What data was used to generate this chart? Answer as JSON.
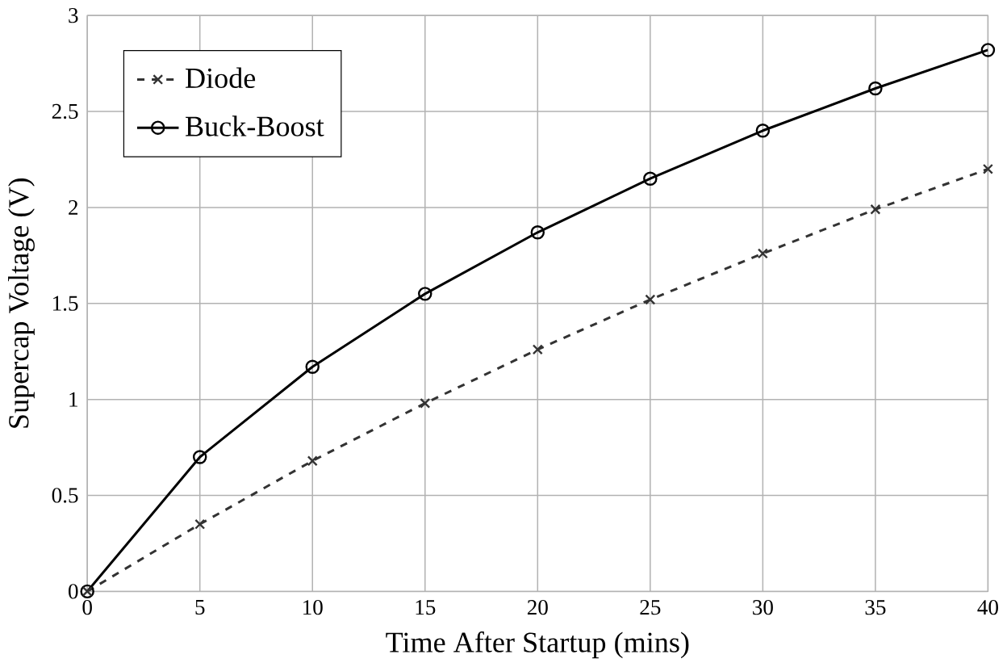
{
  "chart_data": {
    "type": "line",
    "xlabel": "Time After Startup (mins)",
    "ylabel": "Supercap Voltage (V)",
    "x": [
      0,
      5,
      10,
      15,
      20,
      25,
      30,
      35,
      40
    ],
    "series": [
      {
        "name": "Diode",
        "color": "#333333",
        "values": [
          0,
          0.35,
          0.68,
          0.98,
          1.26,
          1.52,
          1.76,
          1.99,
          2.2
        ],
        "marker": "cross",
        "line_style": "dashed"
      },
      {
        "name": "Buck-Boost",
        "color": "#000000",
        "values": [
          0,
          0.7,
          1.17,
          1.55,
          1.87,
          2.15,
          2.4,
          2.62,
          2.82
        ],
        "marker": "circle",
        "line_style": "solid"
      }
    ],
    "xlim": [
      0,
      40
    ],
    "xticks": [
      0,
      5,
      10,
      15,
      20,
      25,
      30,
      35,
      40
    ],
    "ylim": [
      0,
      3
    ],
    "yticks": [
      0,
      0.5,
      1,
      1.5,
      2,
      2.5,
      3
    ],
    "grid": true,
    "legend": "top left"
  }
}
